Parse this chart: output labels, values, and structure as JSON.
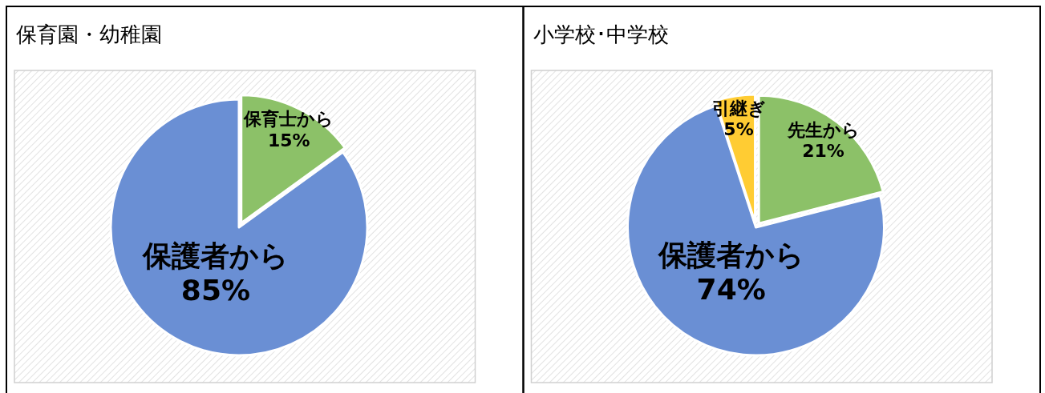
{
  "chart_data": [
    {
      "type": "pie",
      "title": "保育園・幼稚園",
      "categories": [
        "保育士から",
        "保護者から"
      ],
      "values": [
        15,
        85
      ],
      "value_labels": [
        "15%",
        "85%"
      ],
      "colors": [
        "#8cc168",
        "#6a8fd4"
      ]
    },
    {
      "type": "pie",
      "title": "小学校･中学校",
      "categories": [
        "先生から",
        "保護者から",
        "引継ぎ"
      ],
      "values": [
        21,
        74,
        5
      ],
      "value_labels": [
        "21%",
        "74%",
        "5%"
      ],
      "colors": [
        "#8cc168",
        "#6a8fd4",
        "#ffcc33"
      ]
    }
  ]
}
